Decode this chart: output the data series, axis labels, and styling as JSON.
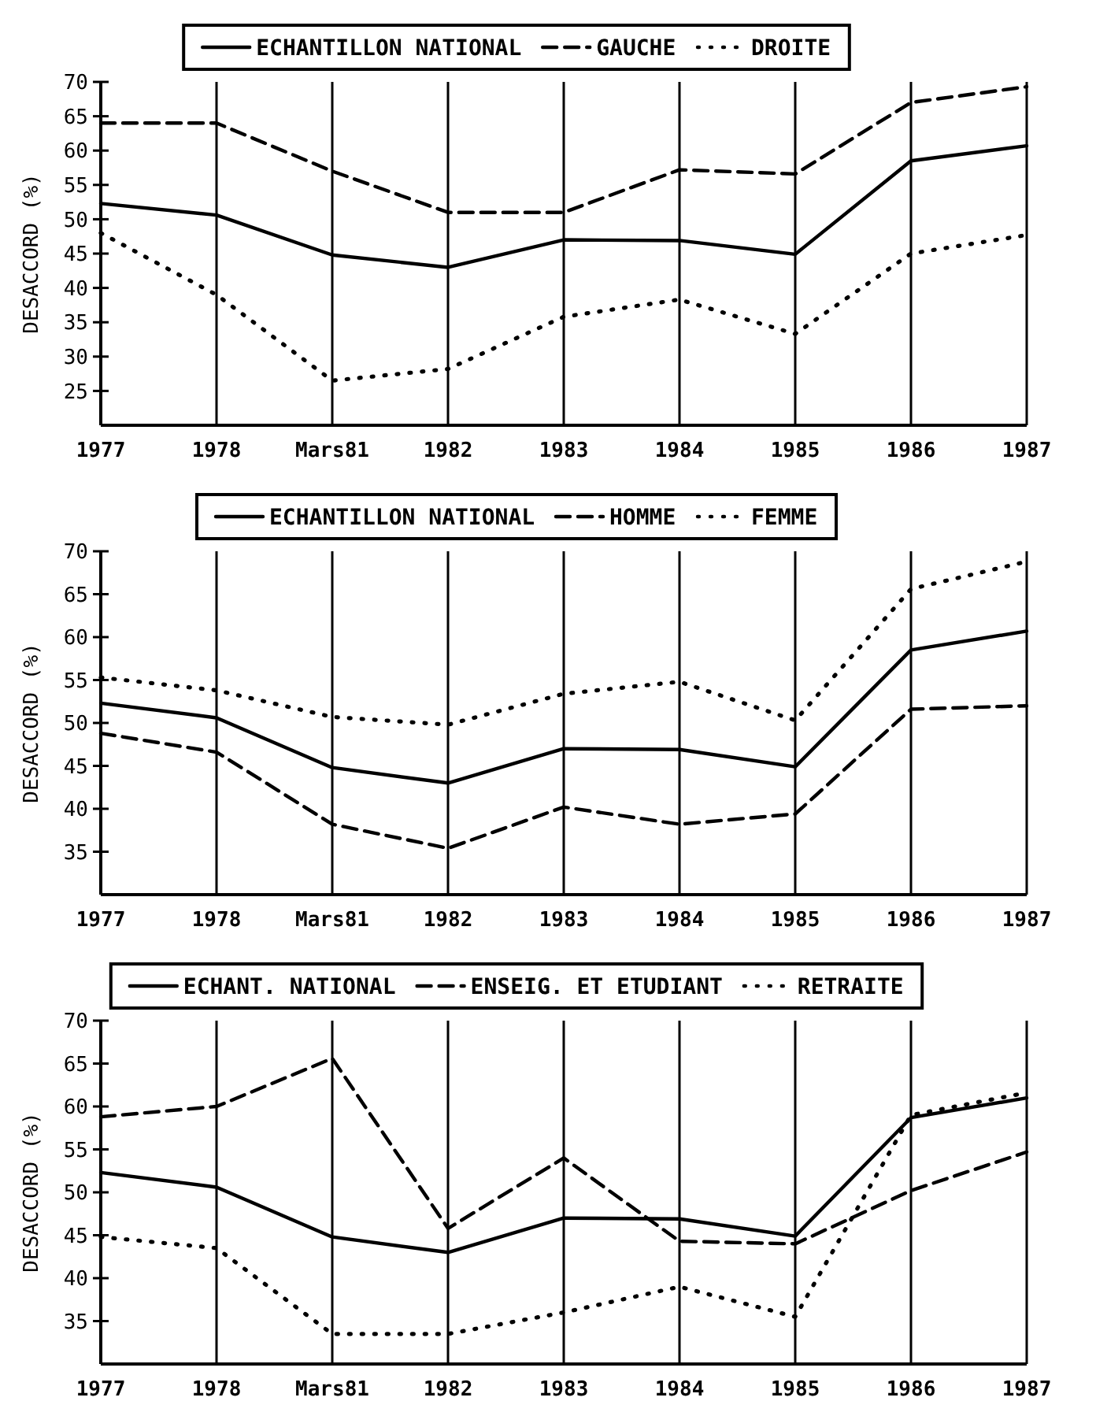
{
  "chart_data": [
    {
      "type": "line",
      "ylabel": "DESACCORD (%)",
      "categories": [
        "1977",
        "1978",
        "Mars81",
        "1982",
        "1983",
        "1984",
        "1985",
        "1986",
        "1987"
      ],
      "ylim": [
        20,
        70
      ],
      "yticks": [
        25,
        30,
        35,
        40,
        45,
        50,
        55,
        60,
        65,
        70
      ],
      "grid": "x",
      "legend": "top",
      "series": [
        {
          "name": "ECHANTILLON NATIONAL",
          "color": "#000000",
          "line_style": "solid",
          "values": [
            52.3,
            50.6,
            44.8,
            43,
            47,
            46.9,
            44.9,
            58.5,
            60.7
          ]
        },
        {
          "name": "GAUCHE",
          "color": "#000000",
          "line_style": "dashed",
          "values": [
            64,
            64,
            57,
            51,
            51,
            57.2,
            56.6,
            67,
            69.3
          ]
        },
        {
          "name": "DROITE",
          "color": "#000000",
          "line_style": "dotted",
          "values": [
            48,
            39,
            26.5,
            28.2,
            35.8,
            38.3,
            33.3,
            45,
            47.7
          ]
        }
      ]
    },
    {
      "type": "line",
      "ylabel": "DESACCORD (%)",
      "categories": [
        "1977",
        "1978",
        "Mars81",
        "1982",
        "1983",
        "1984",
        "1985",
        "1986",
        "1987"
      ],
      "ylim": [
        30,
        70
      ],
      "yticks": [
        35,
        40,
        45,
        50,
        55,
        60,
        65,
        70
      ],
      "grid": "x",
      "legend": "top",
      "series": [
        {
          "name": "ECHANTILLON NATIONAL",
          "color": "#000000",
          "line_style": "solid",
          "values": [
            52.3,
            50.6,
            44.8,
            43,
            47,
            46.9,
            44.9,
            58.5,
            60.7
          ]
        },
        {
          "name": "HOMME",
          "color": "#000000",
          "line_style": "dashed",
          "values": [
            48.8,
            46.6,
            38.2,
            35.4,
            40.2,
            38.2,
            39.4,
            51.6,
            52
          ]
        },
        {
          "name": "FEMME",
          "color": "#000000",
          "line_style": "dotted",
          "values": [
            55.3,
            53.8,
            50.7,
            49.8,
            53.4,
            54.8,
            50.3,
            65.6,
            68.8
          ]
        }
      ]
    },
    {
      "type": "line",
      "ylabel": "DESACCORD (%)",
      "categories": [
        "1977",
        "1978",
        "Mars81",
        "1982",
        "1983",
        "1984",
        "1985",
        "1986",
        "1987"
      ],
      "ylim": [
        30,
        70
      ],
      "yticks": [
        35,
        40,
        45,
        50,
        55,
        60,
        65,
        70
      ],
      "grid": "x",
      "legend": "top",
      "series": [
        {
          "name": "ECHANT. NATIONAL",
          "color": "#000000",
          "line_style": "solid",
          "values": [
            52.3,
            50.6,
            44.8,
            43,
            47,
            46.9,
            44.9,
            58.7,
            61
          ]
        },
        {
          "name": "ENSEIG. ET ETUDIANT",
          "color": "#000000",
          "line_style": "dashed",
          "values": [
            58.8,
            60,
            65.6,
            45.8,
            54,
            44.3,
            44,
            50.2,
            54.7
          ]
        },
        {
          "name": "RETRAITE",
          "color": "#000000",
          "line_style": "dotted",
          "values": [
            44.8,
            43.5,
            33.5,
            33.5,
            36,
            39,
            35.5,
            59,
            61.6
          ]
        }
      ]
    }
  ]
}
